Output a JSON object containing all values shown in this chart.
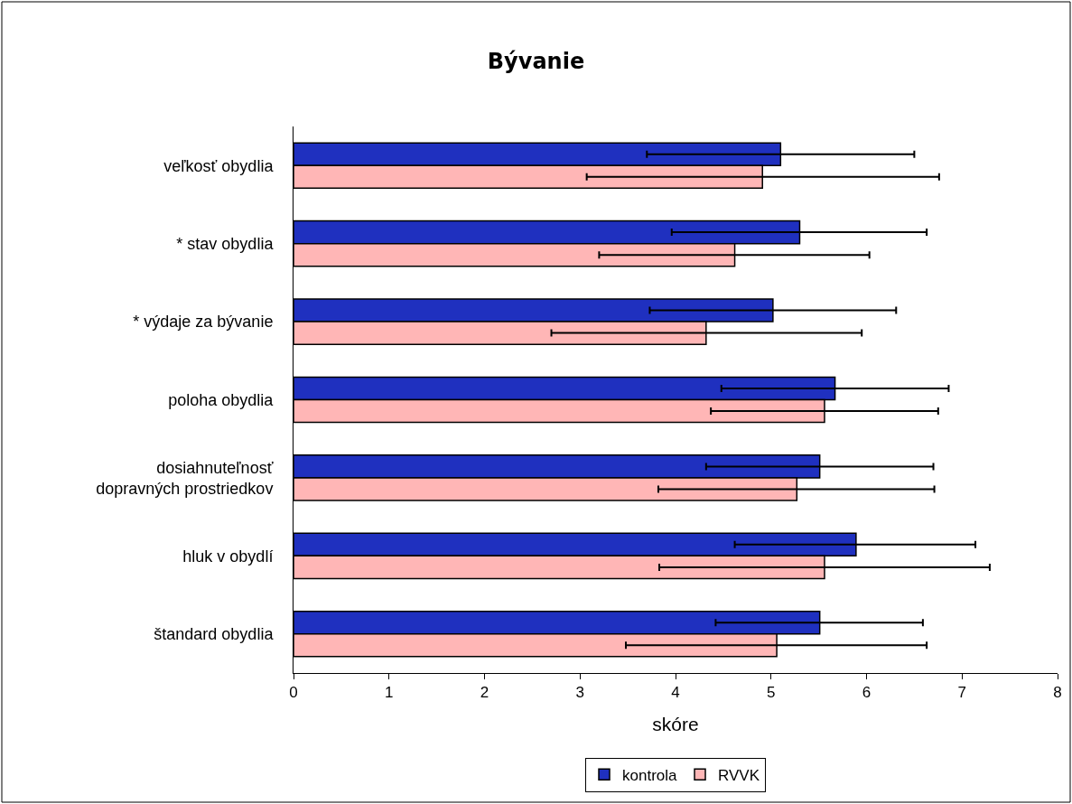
{
  "chart_data": {
    "type": "bar",
    "orientation": "horizontal",
    "title": "Bývanie",
    "xlabel": "skóre",
    "categories": [
      "veľkosť obydlia",
      "* stav obydlia",
      "* výdaje za bývanie",
      "poloha obydlia",
      "dosiahnuteľnosť dopravných prostriedkov",
      "hluk v obydlí",
      "štandard obydlia"
    ],
    "series": [
      {
        "name": "kontrola",
        "color": "#1f30bf",
        "values": [
          5.1,
          5.3,
          5.02,
          5.67,
          5.51,
          5.89,
          5.51
        ],
        "errors": [
          [
            3.7,
            6.5
          ],
          [
            3.96,
            6.63
          ],
          [
            3.73,
            6.31
          ],
          [
            4.48,
            6.86
          ],
          [
            4.32,
            6.7
          ],
          [
            4.62,
            7.14
          ],
          [
            4.42,
            6.59
          ]
        ]
      },
      {
        "name": "RVVK",
        "color": "#ffb6b6",
        "values": [
          4.91,
          4.62,
          4.32,
          5.56,
          5.27,
          5.56,
          5.06
        ],
        "errors": [
          [
            3.07,
            6.76
          ],
          [
            3.2,
            6.03
          ],
          [
            2.7,
            5.95
          ],
          [
            4.37,
            6.75
          ],
          [
            3.82,
            6.71
          ],
          [
            3.83,
            7.29
          ],
          [
            3.48,
            6.63
          ]
        ]
      }
    ],
    "xlim": [
      0,
      8
    ],
    "xticks": [
      0,
      1,
      2,
      3,
      4,
      5,
      6,
      7,
      8
    ],
    "grid": false,
    "legend": "bottom"
  }
}
